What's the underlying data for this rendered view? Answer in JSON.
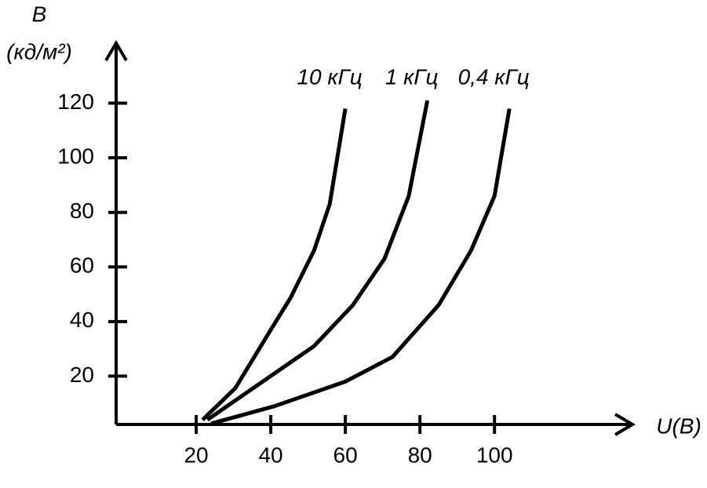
{
  "chart_data": {
    "type": "line",
    "ylabel": "B",
    "yunit": "(кд/м²)",
    "xlabel": "U(B)",
    "xlim": [
      0,
      137
    ],
    "ylim": [
      0,
      142
    ],
    "xticks": [
      20,
      40,
      60,
      80,
      100
    ],
    "yticks": [
      20,
      40,
      60,
      80,
      100,
      120
    ],
    "series": [
      {
        "name": "10 кГц",
        "color": "#000000",
        "x": [
          21.7,
          30.5,
          40,
          45.3,
          51.6,
          55.8,
          60
        ],
        "values": [
          4,
          15.6,
          37,
          48.7,
          66,
          83,
          118
        ]
      },
      {
        "name": "1 кГц",
        "color": "#000000",
        "x": [
          23,
          41,
          51.6,
          62,
          70.5,
          77,
          82
        ],
        "values": [
          4,
          21,
          31,
          46,
          63,
          86,
          121
        ]
      },
      {
        "name": "0,4 кГц",
        "color": "#000000",
        "x": [
          24,
          41,
          60,
          72.6,
          85,
          93.7,
          100,
          104
        ],
        "values": [
          2.6,
          9,
          18,
          27,
          46,
          66,
          86,
          118
        ]
      }
    ]
  }
}
